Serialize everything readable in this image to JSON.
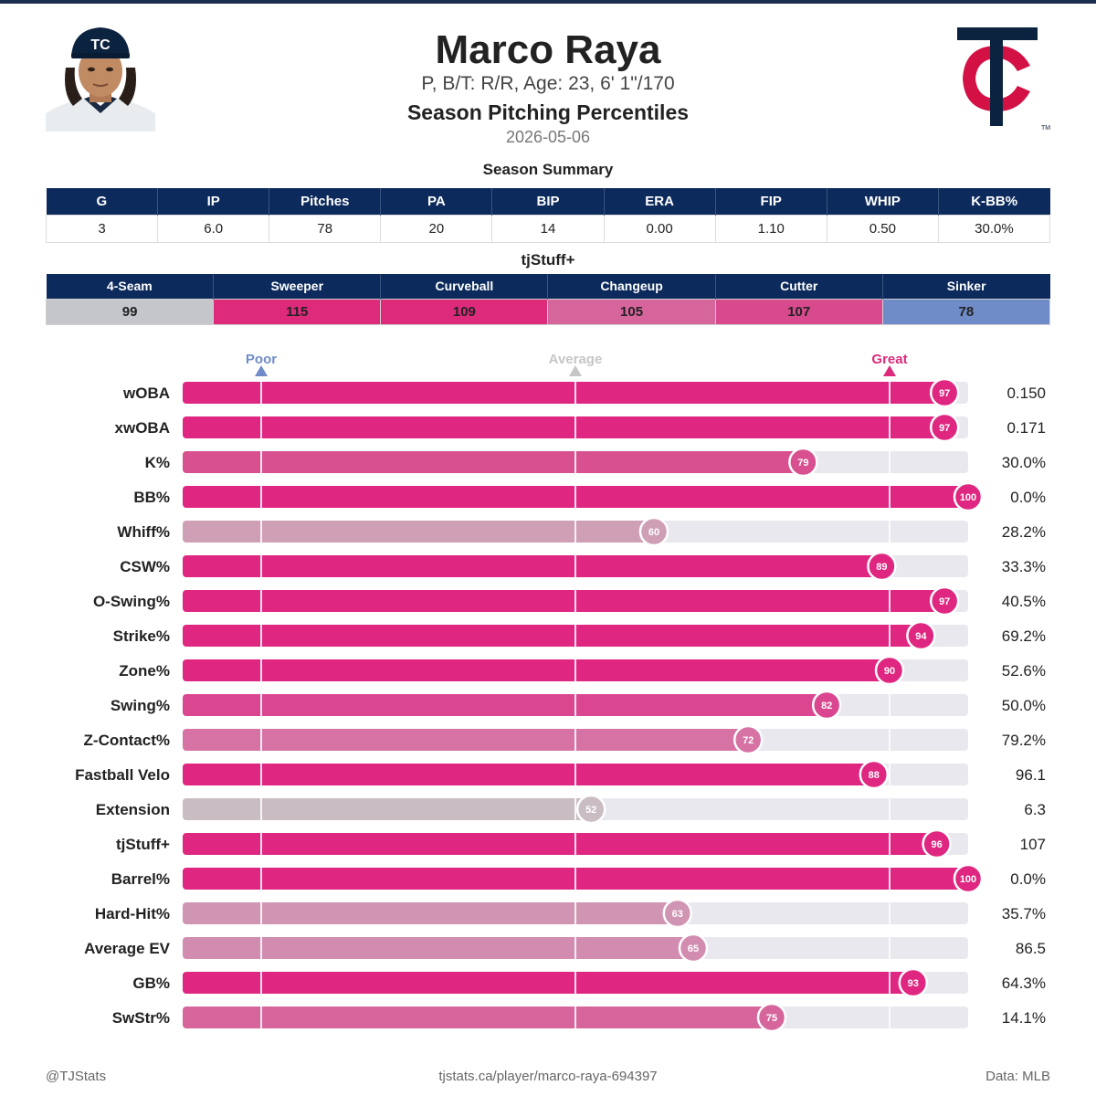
{
  "player": {
    "name": "Marco Raya",
    "info": "P, B/T: R/R, Age: 23, 6' 1\"/170",
    "report_title": "Season Pitching Percentiles",
    "date": "2026-05-06"
  },
  "summary": {
    "title": "Season Summary",
    "headers": [
      "G",
      "IP",
      "Pitches",
      "PA",
      "BIP",
      "ERA",
      "FIP",
      "WHIP",
      "K-BB%"
    ],
    "values": [
      "3",
      "6.0",
      "78",
      "20",
      "14",
      "0.00",
      "1.10",
      "0.50",
      "30.0%"
    ]
  },
  "tjstuff": {
    "title": "tjStuff+",
    "pitches": [
      {
        "name": "4-Seam",
        "value": "99",
        "color": "#c4c6cc"
      },
      {
        "name": "Sweeper",
        "value": "115",
        "color": "#dd2a7b"
      },
      {
        "name": "Curveball",
        "value": "109",
        "color": "#dd2a7b"
      },
      {
        "name": "Changeup",
        "value": "105",
        "color": "#d6659c"
      },
      {
        "name": "Cutter",
        "value": "107",
        "color": "#d84a8d"
      },
      {
        "name": "Sinker",
        "value": "78",
        "color": "#6f8cc8"
      }
    ]
  },
  "chart_data": {
    "type": "bar",
    "orientation": "horizontal",
    "xlim": [
      0,
      100
    ],
    "markers": [
      {
        "label": "Poor",
        "value": 10,
        "color": "#6f8cc8"
      },
      {
        "label": "Average",
        "value": 50,
        "color": "#c6c6c6"
      },
      {
        "label": "Great",
        "value": 90,
        "color": "#dd2a7b"
      }
    ],
    "bars": [
      {
        "stat": "wOBA",
        "percentile": 97,
        "value": "0.150",
        "color": "#df2680"
      },
      {
        "stat": "xwOBA",
        "percentile": 97,
        "value": "0.171",
        "color": "#df2680"
      },
      {
        "stat": "K%",
        "percentile": 79,
        "value": "30.0%",
        "color": "#d8508f"
      },
      {
        "stat": "BB%",
        "percentile": 100,
        "value": "0.0%",
        "color": "#df2680"
      },
      {
        "stat": "Whiff%",
        "percentile": 60,
        "value": "28.2%",
        "color": "#cf9fb6"
      },
      {
        "stat": "CSW%",
        "percentile": 89,
        "value": "33.3%",
        "color": "#df2680"
      },
      {
        "stat": "O-Swing%",
        "percentile": 97,
        "value": "40.5%",
        "color": "#df2680"
      },
      {
        "stat": "Strike%",
        "percentile": 94,
        "value": "69.2%",
        "color": "#df2680"
      },
      {
        "stat": "Zone%",
        "percentile": 90,
        "value": "52.6%",
        "color": "#df2680"
      },
      {
        "stat": "Swing%",
        "percentile": 82,
        "value": "50.0%",
        "color": "#da4790"
      },
      {
        "stat": "Z-Contact%",
        "percentile": 72,
        "value": "79.2%",
        "color": "#d673a4"
      },
      {
        "stat": "Fastball Velo",
        "percentile": 88,
        "value": "96.1",
        "color": "#df2680"
      },
      {
        "stat": "Extension",
        "percentile": 52,
        "value": "6.3",
        "color": "#cabcc3"
      },
      {
        "stat": "tjStuff+",
        "percentile": 96,
        "value": "107",
        "color": "#df2680"
      },
      {
        "stat": "Barrel%",
        "percentile": 100,
        "value": "0.0%",
        "color": "#df2680"
      },
      {
        "stat": "Hard-Hit%",
        "percentile": 63,
        "value": "35.7%",
        "color": "#cf95b2"
      },
      {
        "stat": "Average EV",
        "percentile": 65,
        "value": "86.5",
        "color": "#d18cb0"
      },
      {
        "stat": "GB%",
        "percentile": 93,
        "value": "64.3%",
        "color": "#df2680"
      },
      {
        "stat": "SwStr%",
        "percentile": 75,
        "value": "14.1%",
        "color": "#d6659c"
      }
    ]
  },
  "footer": {
    "left": "@TJStats",
    "center": "tjstats.ca/player/marco-raya-694397",
    "right": "Data: MLB"
  }
}
